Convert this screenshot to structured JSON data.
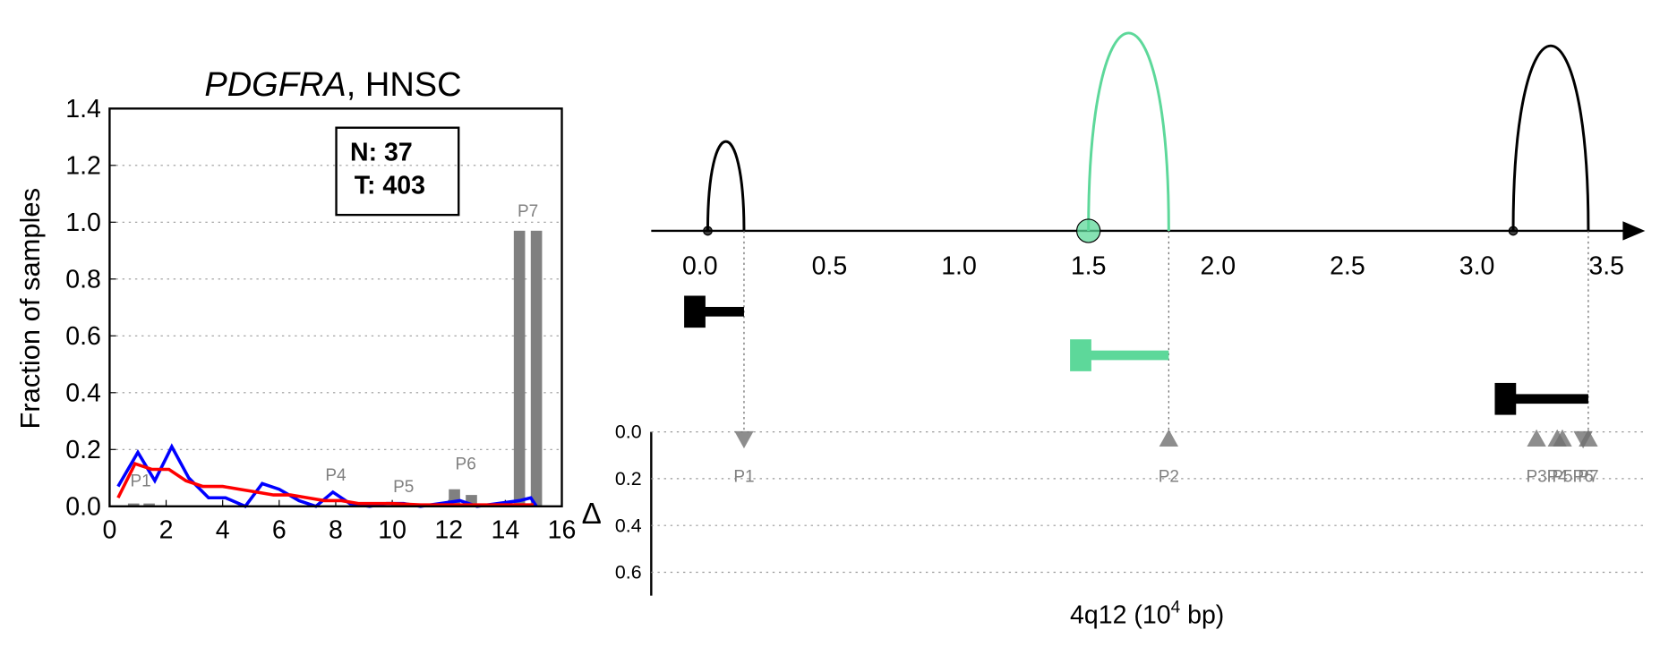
{
  "chart_data": [
    {
      "type": "line",
      "title": {
        "gene": "PDGFRA",
        "rest": ", HNSC"
      },
      "ylabel": "Fraction of samples",
      "annotation": [
        "N: 37",
        "T: 403"
      ],
      "xlim": [
        0,
        16
      ],
      "xticks": [
        0,
        2,
        4,
        6,
        8,
        10,
        12,
        14,
        16
      ],
      "ylim": [
        0,
        1.4
      ],
      "yticks": [
        {
          "value": 0,
          "label": "0.0"
        },
        {
          "value": 0.2,
          "label": "0.2"
        },
        {
          "value": 0.4,
          "label": "0.4"
        },
        {
          "value": 0.6,
          "label": "0.6"
        },
        {
          "value": 0.8,
          "label": "0.8"
        },
        {
          "value": 1.0,
          "label": "1.0"
        },
        {
          "value": 1.2,
          "label": "1.2"
        },
        {
          "value": 1.4,
          "label": "1.4"
        }
      ],
      "grid": true,
      "bars": {
        "color": "#808080",
        "x": [
          0.85,
          1.4,
          8.0,
          8.5,
          10.2,
          10.7,
          12.2,
          12.8,
          14.5,
          15.1
        ],
        "values": [
          0.01,
          0.01,
          0,
          0,
          0.005,
          0.005,
          0.06,
          0.04,
          0.97,
          0.97
        ]
      },
      "peak_labels": {
        "labels": [
          "P1",
          "P4",
          "P5",
          "P6",
          "P7"
        ],
        "x": [
          1.1,
          8.0,
          10.4,
          12.6,
          14.8
        ],
        "y": [
          0.07,
          0.09,
          0.05,
          0.13,
          1.02
        ]
      },
      "series": [
        {
          "color": "#0000ff",
          "x": [
            0.3,
            1.0,
            1.6,
            2.2,
            2.8,
            3.5,
            4.1,
            4.8,
            5.4,
            6.0,
            6.7,
            7.3,
            7.9,
            8.5,
            9.2,
            9.8,
            10.4,
            11.0,
            12.4,
            13.0,
            14.5,
            14.9,
            15.1
          ],
          "values": [
            0.07,
            0.19,
            0.09,
            0.21,
            0.1,
            0.03,
            0.03,
            0.0,
            0.08,
            0.06,
            0.02,
            0.0,
            0.05,
            0.01,
            0.0,
            0.01,
            0.01,
            0.0,
            0.02,
            0.0,
            0.02,
            0.03,
            0.0
          ]
        },
        {
          "color": "#ff0000",
          "x": [
            0.3,
            0.9,
            1.5,
            2.1,
            2.7,
            3.3,
            4.0,
            4.6,
            5.2,
            5.8,
            6.4,
            7.0,
            7.6,
            8.2,
            8.8,
            9.4,
            10.0,
            11.0,
            12.0,
            13.0,
            14.0,
            15.0
          ],
          "values": [
            0.03,
            0.15,
            0.13,
            0.13,
            0.09,
            0.07,
            0.07,
            0.06,
            0.05,
            0.04,
            0.04,
            0.03,
            0.02,
            0.02,
            0.01,
            0.01,
            0.01,
            0.005,
            0.005,
            0.005,
            0.005,
            0.005
          ]
        }
      ]
    },
    {
      "type": "genomic",
      "xlabel": {
        "main": "4q12 (10",
        "sup": "4",
        "unit": " bp)"
      },
      "ylabel": "Δ",
      "xlim": [
        -0.18,
        3.6
      ],
      "xticks": [
        {
          "value": 0,
          "label": "0.0"
        },
        {
          "value": 0.5,
          "label": "0.5"
        },
        {
          "value": 1.0,
          "label": "1.0"
        },
        {
          "value": 1.5,
          "label": "1.5"
        },
        {
          "value": 2.0,
          "label": "2.0"
        },
        {
          "value": 2.5,
          "label": "2.5"
        },
        {
          "value": 3.0,
          "label": "3.0"
        },
        {
          "value": 3.5,
          "label": "3.5"
        }
      ],
      "ylim": [
        0,
        0.7
      ],
      "yticks": [
        {
          "value": 0,
          "label": "0.0"
        },
        {
          "value": 0.2,
          "label": "0.2"
        },
        {
          "value": 0.4,
          "label": "0.4"
        },
        {
          "value": 0.6,
          "label": "0.6"
        }
      ],
      "grid": true,
      "arcs": [
        {
          "start": 0.03,
          "end": 0.17,
          "color": "#000000"
        },
        {
          "start": 1.5,
          "end": 1.81,
          "color": "#5dd89a"
        },
        {
          "start": 3.14,
          "end": 3.43,
          "color": "#000000"
        }
      ],
      "transcripts": [
        {
          "start": -0.02,
          "end": 0.17,
          "color": "#000000"
        },
        {
          "start": 1.47,
          "end": 1.81,
          "color": "#5dd89a"
        },
        {
          "start": 3.11,
          "end": 3.43,
          "color": "#000000"
        }
      ],
      "peaks": {
        "color": "#707070",
        "labels": [
          "P1",
          "P2",
          "P3",
          "P4",
          "P5",
          "P6",
          "P7"
        ],
        "x": [
          0.17,
          1.81,
          3.23,
          3.31,
          3.33,
          3.41,
          3.43
        ],
        "values": [
          0.03,
          0.03,
          0.03,
          0.03,
          0.03,
          0.03,
          0.03
        ],
        "orientation": [
          "down",
          "up",
          "up",
          "up",
          "up",
          "down",
          "up"
        ]
      }
    }
  ]
}
